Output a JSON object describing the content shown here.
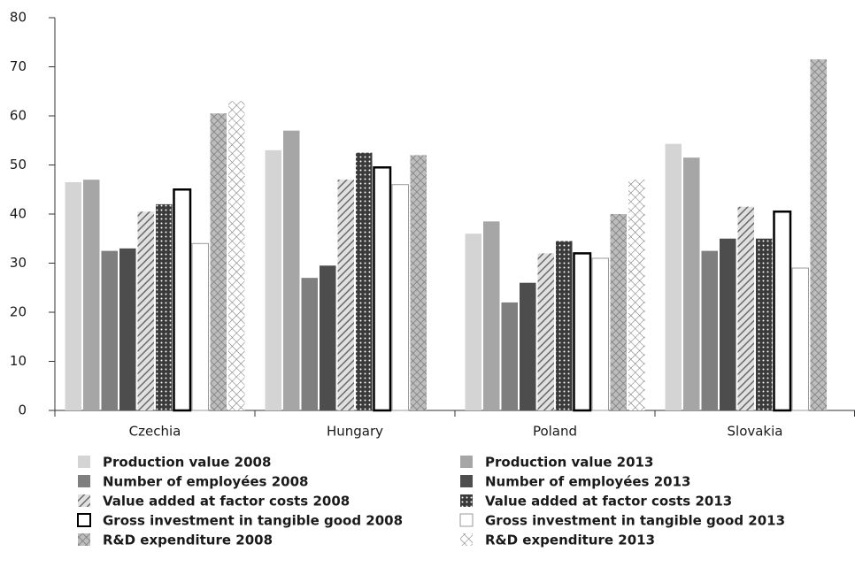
{
  "chart_data": {
    "type": "bar",
    "categories": [
      "Czechia",
      "Hungary",
      "Poland",
      "Slovakia"
    ],
    "series": [
      {
        "name": "Production value 2008",
        "color": "#d4d4d4",
        "pattern": "solid",
        "values": [
          46.5,
          53,
          36,
          54.3
        ]
      },
      {
        "name": "Production value 2013",
        "color": "#a6a6a6",
        "pattern": "solid",
        "values": [
          47,
          57,
          38.5,
          51.5
        ]
      },
      {
        "name": "Number of employées 2008",
        "color": "#7f7f7f",
        "pattern": "solid",
        "values": [
          32.5,
          27,
          22,
          32.5
        ]
      },
      {
        "name": "Number of employées 2013",
        "color": "#4d4d4d",
        "pattern": "solid",
        "values": [
          33,
          29.5,
          26,
          35
        ]
      },
      {
        "name": "Value added at factor costs 2008",
        "color": "#8c8c8c",
        "pattern": "diagonal",
        "values": [
          40.5,
          47,
          32,
          41.5
        ]
      },
      {
        "name": "Value added at factor costs 2013",
        "color": "#3a3a3a",
        "pattern": "dots",
        "values": [
          42,
          52.5,
          34.5,
          35
        ]
      },
      {
        "name": "Gross investment in tangible good 2008",
        "color": "#000000",
        "pattern": "outline",
        "values": [
          45,
          49.5,
          32,
          40.5
        ]
      },
      {
        "name": "Gross investment in tangible good 2013",
        "color": "#9a9a9a",
        "pattern": "thin-outline",
        "values": [
          34,
          46,
          31,
          29
        ]
      },
      {
        "name": "R&D expenditure 2008",
        "color": "#8c8c8c",
        "pattern": "crosshatch",
        "values": [
          60.5,
          52,
          40,
          71.5
        ]
      },
      {
        "name": "R&D expenditure 2013",
        "color": "#6e6e6e",
        "pattern": "crosshatch-light",
        "values": [
          63,
          null,
          47,
          null
        ]
      }
    ],
    "ylim": [
      0,
      80
    ],
    "yticks": [
      0,
      10,
      20,
      30,
      40,
      50,
      60,
      70,
      80
    ],
    "grid": false
  }
}
